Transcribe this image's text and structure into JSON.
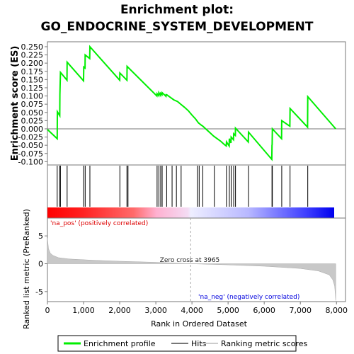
{
  "title_line1": "Enrichment plot:",
  "title_line2": "GO_ENDOCRINE_SYSTEM_DEVELOPMENT",
  "chart_data": {
    "type": "line",
    "x_label": "Rank in Ordered Dataset",
    "x_ticks": [
      "0",
      "1,000",
      "2,000",
      "3,000",
      "4,000",
      "5,000",
      "6,000",
      "7,000",
      "8,000"
    ],
    "x_tick_values": [
      0,
      1000,
      2000,
      3000,
      4000,
      5000,
      6000,
      7000,
      8000
    ],
    "xlim": [
      0,
      8250
    ],
    "panels": {
      "enrichment": {
        "ylabel": "Enrichment score (ES)",
        "ylim": [
          -0.11,
          0.265
        ],
        "y_ticks": [
          "-0.100",
          "-0.075",
          "-0.050",
          "-0.025",
          "0.000",
          "0.025",
          "0.050",
          "0.075",
          "0.100",
          "0.125",
          "0.150",
          "0.175",
          "0.200",
          "0.225",
          "0.250"
        ],
        "y_tick_values": [
          -0.1,
          -0.075,
          -0.05,
          -0.025,
          0,
          0.025,
          0.05,
          0.075,
          0.1,
          0.125,
          0.15,
          0.175,
          0.2,
          0.225,
          0.25
        ],
        "series": [
          {
            "name": "Enrichment profile",
            "color": "#00ee00",
            "x": [
              0,
              270,
              275,
              340,
              345,
              360,
              540,
              545,
              1000,
              1005,
              1040,
              1045,
              1170,
              1175,
              2000,
              2005,
              2200,
              2205,
              3030,
              3035,
              3080,
              3085,
              3130,
              3135,
              3170,
              3175,
              3280,
              3285,
              3300,
              3400,
              3500,
              3600,
              3700,
              3800,
              3900,
              4000,
              4100,
              4180,
              4250,
              4300,
              4400,
              4500,
              4600,
              4700,
              4800,
              4900,
              4950,
              4955,
              5030,
              5035,
              5080,
              5085,
              5150,
              5155,
              5200,
              5205,
              5560,
              5565,
              6210,
              6215,
              6220,
              6225,
              6480,
              6485,
              6710,
              6715,
              7200,
              7205,
              7980
            ],
            "y": [
              -0.002,
              -0.03,
              0.052,
              0.04,
              0.105,
              0.172,
              0.148,
              0.203,
              0.146,
              0.188,
              0.185,
              0.225,
              0.214,
              0.25,
              0.148,
              0.17,
              0.148,
              0.19,
              0.1,
              0.107,
              0.101,
              0.11,
              0.102,
              0.108,
              0.104,
              0.11,
              0.099,
              0.104,
              0.104,
              0.096,
              0.088,
              0.083,
              0.074,
              0.065,
              0.055,
              0.042,
              0.03,
              0.018,
              0.012,
              0.008,
              -0.002,
              -0.012,
              -0.022,
              -0.03,
              -0.038,
              -0.048,
              -0.052,
              -0.04,
              -0.052,
              -0.03,
              -0.043,
              -0.025,
              -0.033,
              -0.015,
              -0.02,
              0.002,
              -0.04,
              -0.01,
              -0.093,
              -0.05,
              -0.048,
              0.0,
              -0.03,
              0.025,
              0.008,
              0.062,
              0.005,
              0.098,
              0.0
            ]
          }
        ]
      },
      "hits": {
        "name": "Hits",
        "positions": [
          270,
          340,
          360,
          545,
          1000,
          1045,
          1175,
          2005,
          2200,
          2230,
          3035,
          3085,
          3135,
          3175,
          3300,
          3450,
          3570,
          3700,
          4150,
          4200,
          4300,
          4620,
          4955,
          5035,
          5085,
          5155,
          5205,
          5565,
          6215,
          6225,
          6485,
          6715,
          7205
        ]
      },
      "ranking": {
        "name": "Ranking metric scores",
        "ylabel": "Ranked list metric (PreRanked)",
        "ylim": [
          -6.8,
          8.2
        ],
        "y_ticks": [
          "-5",
          "0",
          "5"
        ],
        "y_tick_values": [
          -5,
          0,
          5
        ],
        "zero_cross": "Zero cross at 3965",
        "zero_cross_rank": 3965,
        "pos_label": "'na_pos' (positively correlated)",
        "neg_label": "'na_neg' (negatively correlated)",
        "pos_label_color": "#dd0000",
        "neg_label_color": "#0000dd",
        "shape": [
          [
            0,
            4.6
          ],
          [
            30,
            2.7
          ],
          [
            80,
            1.9
          ],
          [
            150,
            1.5
          ],
          [
            300,
            1.1
          ],
          [
            600,
            0.85
          ],
          [
            1200,
            0.65
          ],
          [
            2000,
            0.45
          ],
          [
            3000,
            0.25
          ],
          [
            3965,
            0.0
          ],
          [
            5000,
            -0.2
          ],
          [
            6000,
            -0.45
          ],
          [
            7000,
            -0.85
          ],
          [
            7500,
            -1.3
          ],
          [
            7800,
            -2.0
          ],
          [
            7900,
            -2.9
          ],
          [
            7950,
            -4.0
          ],
          [
            7980,
            -6.6
          ]
        ]
      }
    },
    "legend": {
      "placement": "bottom",
      "items": [
        {
          "label": "Enrichment profile",
          "color": "#00ee00"
        },
        {
          "label": "Hits",
          "color": "#777777"
        },
        {
          "label": "Ranking metric scores",
          "color": "#cccccc"
        }
      ]
    }
  }
}
